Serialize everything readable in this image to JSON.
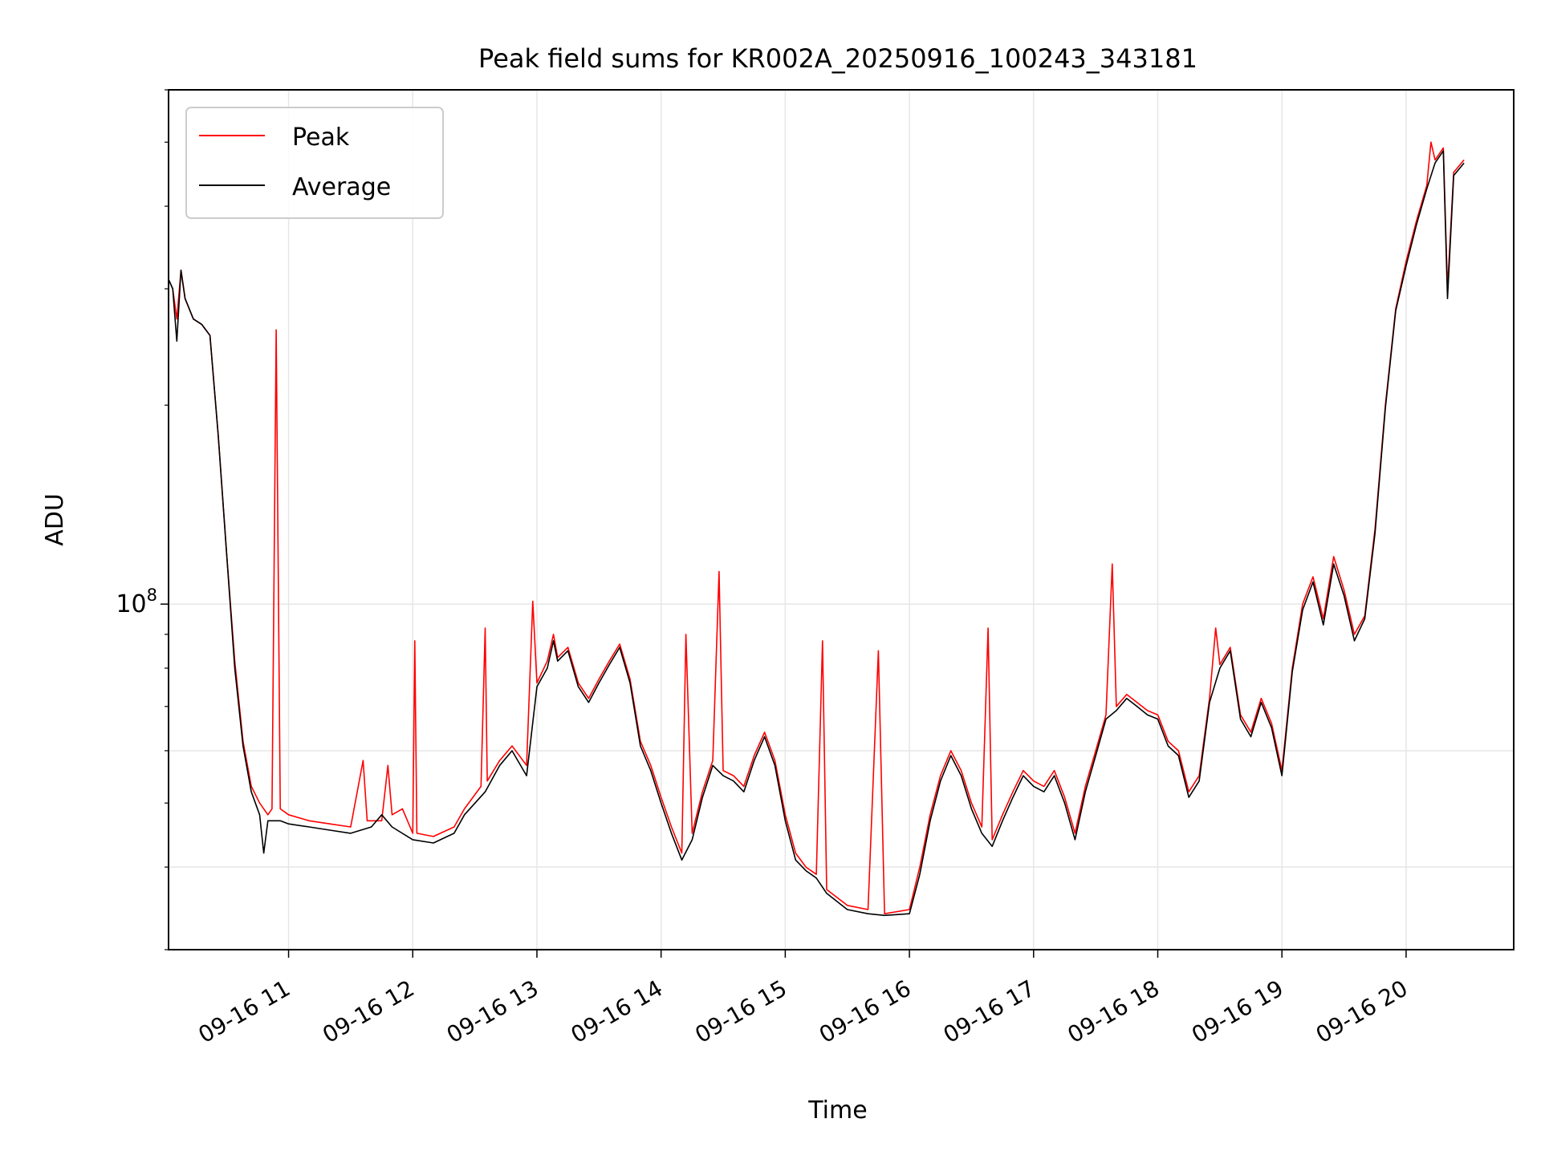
{
  "chart_data": {
    "type": "line",
    "title": "Peak field sums for KR002A_20250916_100243_343181",
    "xlabel": "Time",
    "ylabel": "ADU",
    "y_scale": "log",
    "x_range": [
      "2025-09-16 10:02",
      "2025-09-16 20:52"
    ],
    "ylim": [
      30000000,
      600000000
    ],
    "x_ticks": [
      "09-16 11",
      "09-16 12",
      "09-16 13",
      "09-16 14",
      "09-16 15",
      "09-16 16",
      "09-16 17",
      "09-16 18",
      "09-16 19",
      "09-16 20"
    ],
    "y_tick_label": {
      "base": "10",
      "exponent": "8"
    },
    "grid": true,
    "legend_position": "top-left",
    "series": [
      {
        "name": "Peak",
        "color": "#ff0000",
        "values": [
          [
            "10:02",
            310000000
          ],
          [
            "10:04",
            300000000
          ],
          [
            "10:06",
            270000000
          ],
          [
            "10:08",
            320000000
          ],
          [
            "10:10",
            290000000
          ],
          [
            "10:14",
            270000000
          ],
          [
            "10:18",
            265000000
          ],
          [
            "10:22",
            255000000
          ],
          [
            "10:26",
            180000000
          ],
          [
            "10:30",
            120000000
          ],
          [
            "10:34",
            82000000
          ],
          [
            "10:38",
            62000000
          ],
          [
            "10:42",
            53000000
          ],
          [
            "10:46",
            50000000
          ],
          [
            "10:50",
            48000000
          ],
          [
            "10:52",
            49000000
          ],
          [
            "10:54",
            260000000
          ],
          [
            "10:56",
            49000000
          ],
          [
            "11:00",
            48000000
          ],
          [
            "11:10",
            47000000
          ],
          [
            "11:20",
            46500000
          ],
          [
            "11:30",
            46000000
          ],
          [
            "11:36",
            58000000
          ],
          [
            "11:38",
            47000000
          ],
          [
            "11:45",
            47000000
          ],
          [
            "11:48",
            57000000
          ],
          [
            "11:50",
            48000000
          ],
          [
            "11:55",
            49000000
          ],
          [
            "12:00",
            45000000
          ],
          [
            "12:01",
            88000000
          ],
          [
            "12:02",
            45000000
          ],
          [
            "12:10",
            44500000
          ],
          [
            "12:20",
            46000000
          ],
          [
            "12:25",
            49000000
          ],
          [
            "12:33",
            53000000
          ],
          [
            "12:35",
            92000000
          ],
          [
            "12:36",
            54000000
          ],
          [
            "12:42",
            58000000
          ],
          [
            "12:48",
            61000000
          ],
          [
            "12:55",
            57000000
          ],
          [
            "12:58",
            101000000
          ],
          [
            "13:00",
            76000000
          ],
          [
            "13:05",
            82000000
          ],
          [
            "13:08",
            90000000
          ],
          [
            "13:10",
            83000000
          ],
          [
            "13:15",
            86000000
          ],
          [
            "13:20",
            76000000
          ],
          [
            "13:25",
            72000000
          ],
          [
            "13:30",
            77000000
          ],
          [
            "13:35",
            82000000
          ],
          [
            "13:40",
            87000000
          ],
          [
            "13:45",
            77000000
          ],
          [
            "13:50",
            62000000
          ],
          [
            "13:55",
            57000000
          ],
          [
            "14:00",
            51000000
          ],
          [
            "14:05",
            46000000
          ],
          [
            "14:10",
            42000000
          ],
          [
            "14:12",
            90000000
          ],
          [
            "14:15",
            45000000
          ],
          [
            "14:20",
            52000000
          ],
          [
            "14:25",
            58000000
          ],
          [
            "14:28",
            112000000
          ],
          [
            "14:30",
            56000000
          ],
          [
            "14:35",
            55000000
          ],
          [
            "14:40",
            53000000
          ],
          [
            "14:45",
            59000000
          ],
          [
            "14:50",
            64000000
          ],
          [
            "14:55",
            58000000
          ],
          [
            "15:00",
            48000000
          ],
          [
            "15:05",
            42000000
          ],
          [
            "15:10",
            40000000
          ],
          [
            "15:15",
            39000000
          ],
          [
            "15:18",
            88000000
          ],
          [
            "15:20",
            37000000
          ],
          [
            "15:30",
            35000000
          ],
          [
            "15:40",
            34500000
          ],
          [
            "15:45",
            85000000
          ],
          [
            "15:48",
            34000000
          ],
          [
            "16:00",
            34500000
          ],
          [
            "16:05",
            40000000
          ],
          [
            "16:10",
            48000000
          ],
          [
            "16:15",
            55000000
          ],
          [
            "16:20",
            60000000
          ],
          [
            "16:25",
            56000000
          ],
          [
            "16:30",
            50000000
          ],
          [
            "16:35",
            46000000
          ],
          [
            "16:38",
            92000000
          ],
          [
            "16:40",
            44000000
          ],
          [
            "16:45",
            48000000
          ],
          [
            "16:50",
            52000000
          ],
          [
            "16:55",
            56000000
          ],
          [
            "17:00",
            54000000
          ],
          [
            "17:05",
            53000000
          ],
          [
            "17:10",
            56000000
          ],
          [
            "17:15",
            51000000
          ],
          [
            "17:20",
            45000000
          ],
          [
            "17:25",
            53000000
          ],
          [
            "17:30",
            60000000
          ],
          [
            "17:35",
            68000000
          ],
          [
            "17:38",
            115000000
          ],
          [
            "17:40",
            70000000
          ],
          [
            "17:45",
            73000000
          ],
          [
            "17:50",
            71000000
          ],
          [
            "17:55",
            69000000
          ],
          [
            "18:00",
            68000000
          ],
          [
            "18:05",
            62000000
          ],
          [
            "18:10",
            60000000
          ],
          [
            "18:15",
            52000000
          ],
          [
            "18:20",
            55000000
          ],
          [
            "18:25",
            72000000
          ],
          [
            "18:28",
            92000000
          ],
          [
            "18:30",
            81000000
          ],
          [
            "18:35",
            86000000
          ],
          [
            "18:40",
            68000000
          ],
          [
            "18:45",
            64000000
          ],
          [
            "18:50",
            72000000
          ],
          [
            "18:55",
            66000000
          ],
          [
            "19:00",
            56000000
          ],
          [
            "19:05",
            80000000
          ],
          [
            "19:10",
            100000000
          ],
          [
            "19:15",
            110000000
          ],
          [
            "19:20",
            95000000
          ],
          [
            "19:25",
            118000000
          ],
          [
            "19:30",
            105000000
          ],
          [
            "19:35",
            90000000
          ],
          [
            "19:40",
            96000000
          ],
          [
            "19:45",
            130000000
          ],
          [
            "19:50",
            200000000
          ],
          [
            "19:55",
            280000000
          ],
          [
            "20:00",
            330000000
          ],
          [
            "20:05",
            380000000
          ],
          [
            "20:10",
            430000000
          ],
          [
            "20:12",
            500000000
          ],
          [
            "20:14",
            470000000
          ],
          [
            "20:16",
            480000000
          ],
          [
            "20:18",
            490000000
          ],
          [
            "20:20",
            300000000
          ],
          [
            "20:23",
            450000000
          ],
          [
            "20:28",
            470000000
          ]
        ]
      },
      {
        "name": "Average",
        "color": "#000000",
        "values": [
          [
            "10:02",
            310000000
          ],
          [
            "10:04",
            300000000
          ],
          [
            "10:06",
            250000000
          ],
          [
            "10:08",
            320000000
          ],
          [
            "10:10",
            290000000
          ],
          [
            "10:14",
            270000000
          ],
          [
            "10:18",
            265000000
          ],
          [
            "10:22",
            255000000
          ],
          [
            "10:26",
            180000000
          ],
          [
            "10:30",
            120000000
          ],
          [
            "10:34",
            80000000
          ],
          [
            "10:38",
            61000000
          ],
          [
            "10:42",
            52000000
          ],
          [
            "10:46",
            48000000
          ],
          [
            "10:48",
            42000000
          ],
          [
            "10:50",
            47000000
          ],
          [
            "10:56",
            47000000
          ],
          [
            "11:00",
            46500000
          ],
          [
            "11:10",
            46000000
          ],
          [
            "11:20",
            45500000
          ],
          [
            "11:30",
            45000000
          ],
          [
            "11:40",
            46000000
          ],
          [
            "11:45",
            48000000
          ],
          [
            "11:50",
            46000000
          ],
          [
            "12:00",
            44000000
          ],
          [
            "12:10",
            43500000
          ],
          [
            "12:20",
            45000000
          ],
          [
            "12:25",
            48000000
          ],
          [
            "12:35",
            52000000
          ],
          [
            "12:42",
            57000000
          ],
          [
            "12:48",
            60000000
          ],
          [
            "12:55",
            55000000
          ],
          [
            "13:00",
            75000000
          ],
          [
            "13:05",
            80000000
          ],
          [
            "13:08",
            88000000
          ],
          [
            "13:10",
            82000000
          ],
          [
            "13:15",
            85000000
          ],
          [
            "13:20",
            75000000
          ],
          [
            "13:25",
            71000000
          ],
          [
            "13:30",
            76000000
          ],
          [
            "13:35",
            81000000
          ],
          [
            "13:40",
            86000000
          ],
          [
            "13:45",
            76000000
          ],
          [
            "13:50",
            61000000
          ],
          [
            "13:55",
            56000000
          ],
          [
            "14:00",
            50000000
          ],
          [
            "14:05",
            45000000
          ],
          [
            "14:10",
            41000000
          ],
          [
            "14:15",
            44000000
          ],
          [
            "14:20",
            51000000
          ],
          [
            "14:25",
            57000000
          ],
          [
            "14:30",
            55000000
          ],
          [
            "14:35",
            54000000
          ],
          [
            "14:40",
            52000000
          ],
          [
            "14:45",
            58000000
          ],
          [
            "14:50",
            63000000
          ],
          [
            "14:55",
            57000000
          ],
          [
            "15:00",
            47000000
          ],
          [
            "15:05",
            41000000
          ],
          [
            "15:10",
            39500000
          ],
          [
            "15:15",
            38500000
          ],
          [
            "15:20",
            36500000
          ],
          [
            "15:30",
            34500000
          ],
          [
            "15:40",
            34000000
          ],
          [
            "15:48",
            33800000
          ],
          [
            "16:00",
            34000000
          ],
          [
            "16:05",
            39000000
          ],
          [
            "16:10",
            47000000
          ],
          [
            "16:15",
            54000000
          ],
          [
            "16:20",
            59000000
          ],
          [
            "16:25",
            55000000
          ],
          [
            "16:30",
            49000000
          ],
          [
            "16:35",
            45000000
          ],
          [
            "16:40",
            43000000
          ],
          [
            "16:45",
            47000000
          ],
          [
            "16:50",
            51000000
          ],
          [
            "16:55",
            55000000
          ],
          [
            "17:00",
            53000000
          ],
          [
            "17:05",
            52000000
          ],
          [
            "17:10",
            55000000
          ],
          [
            "17:15",
            50000000
          ],
          [
            "17:20",
            44000000
          ],
          [
            "17:25",
            52000000
          ],
          [
            "17:30",
            59000000
          ],
          [
            "17:35",
            67000000
          ],
          [
            "17:40",
            69000000
          ],
          [
            "17:45",
            72000000
          ],
          [
            "17:50",
            70000000
          ],
          [
            "17:55",
            68000000
          ],
          [
            "18:00",
            67000000
          ],
          [
            "18:05",
            61000000
          ],
          [
            "18:10",
            59000000
          ],
          [
            "18:15",
            51000000
          ],
          [
            "18:20",
            54000000
          ],
          [
            "18:25",
            71000000
          ],
          [
            "18:30",
            80000000
          ],
          [
            "18:35",
            85000000
          ],
          [
            "18:40",
            67000000
          ],
          [
            "18:45",
            63000000
          ],
          [
            "18:50",
            71000000
          ],
          [
            "18:55",
            65000000
          ],
          [
            "19:00",
            55000000
          ],
          [
            "19:05",
            79000000
          ],
          [
            "19:10",
            98000000
          ],
          [
            "19:15",
            108000000
          ],
          [
            "19:20",
            93000000
          ],
          [
            "19:25",
            115000000
          ],
          [
            "19:30",
            103000000
          ],
          [
            "19:35",
            88000000
          ],
          [
            "19:40",
            95000000
          ],
          [
            "19:45",
            128000000
          ],
          [
            "19:50",
            198000000
          ],
          [
            "19:55",
            278000000
          ],
          [
            "20:00",
            325000000
          ],
          [
            "20:05",
            375000000
          ],
          [
            "20:10",
            425000000
          ],
          [
            "20:14",
            465000000
          ],
          [
            "20:18",
            485000000
          ],
          [
            "20:20",
            290000000
          ],
          [
            "20:23",
            445000000
          ],
          [
            "20:28",
            465000000
          ]
        ]
      }
    ]
  }
}
